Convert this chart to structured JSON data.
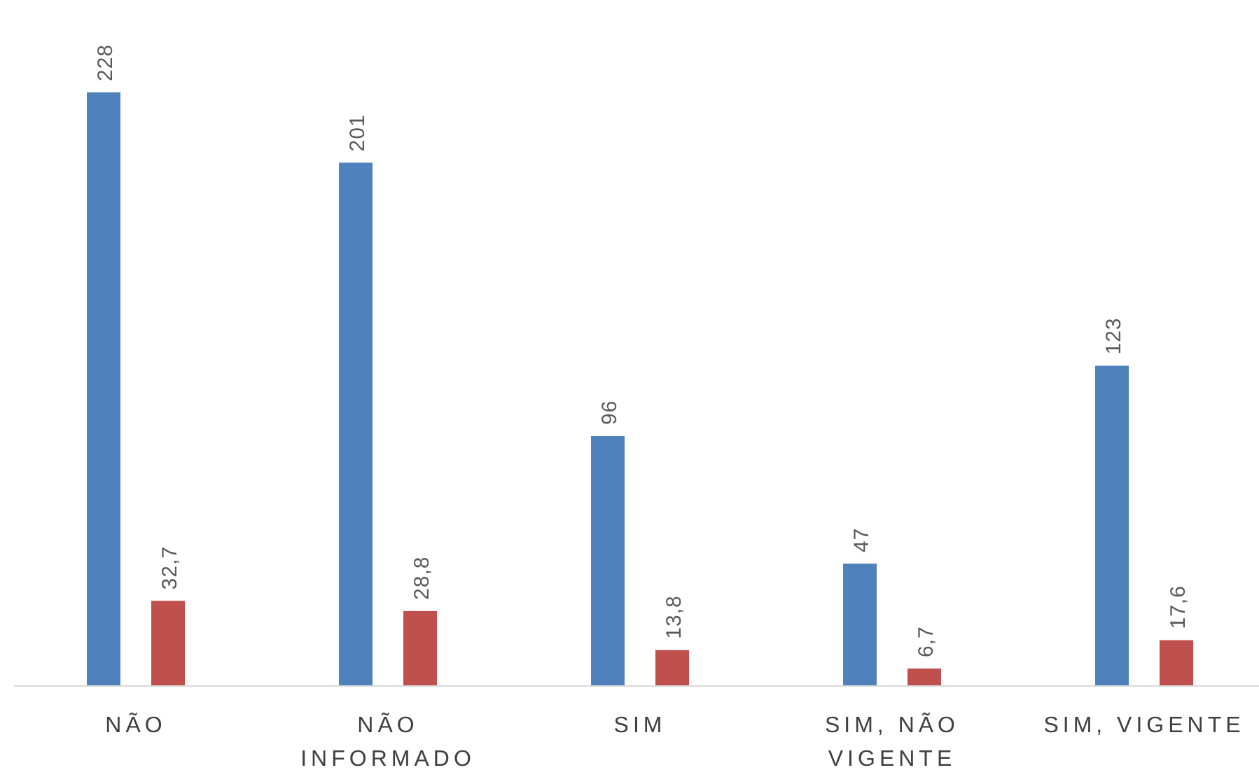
{
  "chart_data": {
    "type": "bar",
    "categories": [
      "NÃO",
      "NÃO INFORMADO",
      "SIM",
      "SIM, NÃO VIGENTE",
      "SIM, VIGENTE"
    ],
    "series": [
      {
        "color": "#4f81bd",
        "values": [
          228,
          201,
          96,
          47,
          123
        ],
        "value_labels": [
          "228",
          "201",
          "96",
          "47",
          "123"
        ]
      },
      {
        "color": "#c0504d",
        "values": [
          32.7,
          28.8,
          13.8,
          6.7,
          17.6
        ],
        "value_labels": [
          "32,7",
          "28,8",
          "13,8",
          "6,7",
          "17,6"
        ]
      }
    ]
  }
}
